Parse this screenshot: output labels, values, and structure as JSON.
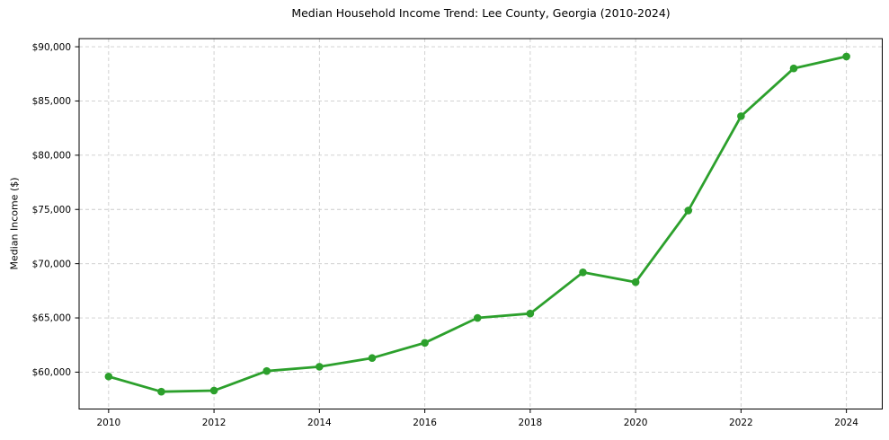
{
  "chart_data": {
    "type": "line",
    "title": "Median Household Income Trend: Lee County, Georgia (2010-2024)",
    "xlabel": "",
    "ylabel": "Median Income ($)",
    "x": [
      2010,
      2011,
      2012,
      2013,
      2014,
      2015,
      2016,
      2017,
      2018,
      2019,
      2020,
      2021,
      2022,
      2023,
      2024
    ],
    "series": [
      {
        "name": "Median Household Income",
        "values": [
          59600,
          58200,
          58300,
          60100,
          60500,
          61300,
          62700,
          65000,
          65400,
          69200,
          68300,
          74900,
          83600,
          88000,
          89100
        ]
      }
    ],
    "xticks": [
      2010,
      2012,
      2014,
      2016,
      2018,
      2020,
      2022,
      2024
    ],
    "xtick_labels": [
      "2010",
      "2012",
      "2014",
      "2016",
      "2018",
      "2020",
      "2022",
      "2024"
    ],
    "yticks": [
      60000,
      65000,
      70000,
      75000,
      80000,
      85000,
      90000
    ],
    "ytick_labels": [
      "$60,000",
      "$65,000",
      "$70,000",
      "$75,000",
      "$80,000",
      "$85,000",
      "$90,000"
    ],
    "xlim": [
      2009.44,
      2024.68
    ],
    "ylim": [
      56600,
      90750
    ],
    "grid": true,
    "grid_style": "dashed",
    "legend_position": "none",
    "marker": "circle",
    "colors": {
      "line": "#2ca02c",
      "marker": "#2ca02c",
      "grid": "#cccccc",
      "spine": "#000000",
      "text": "#000000",
      "background": "#ffffff"
    }
  }
}
